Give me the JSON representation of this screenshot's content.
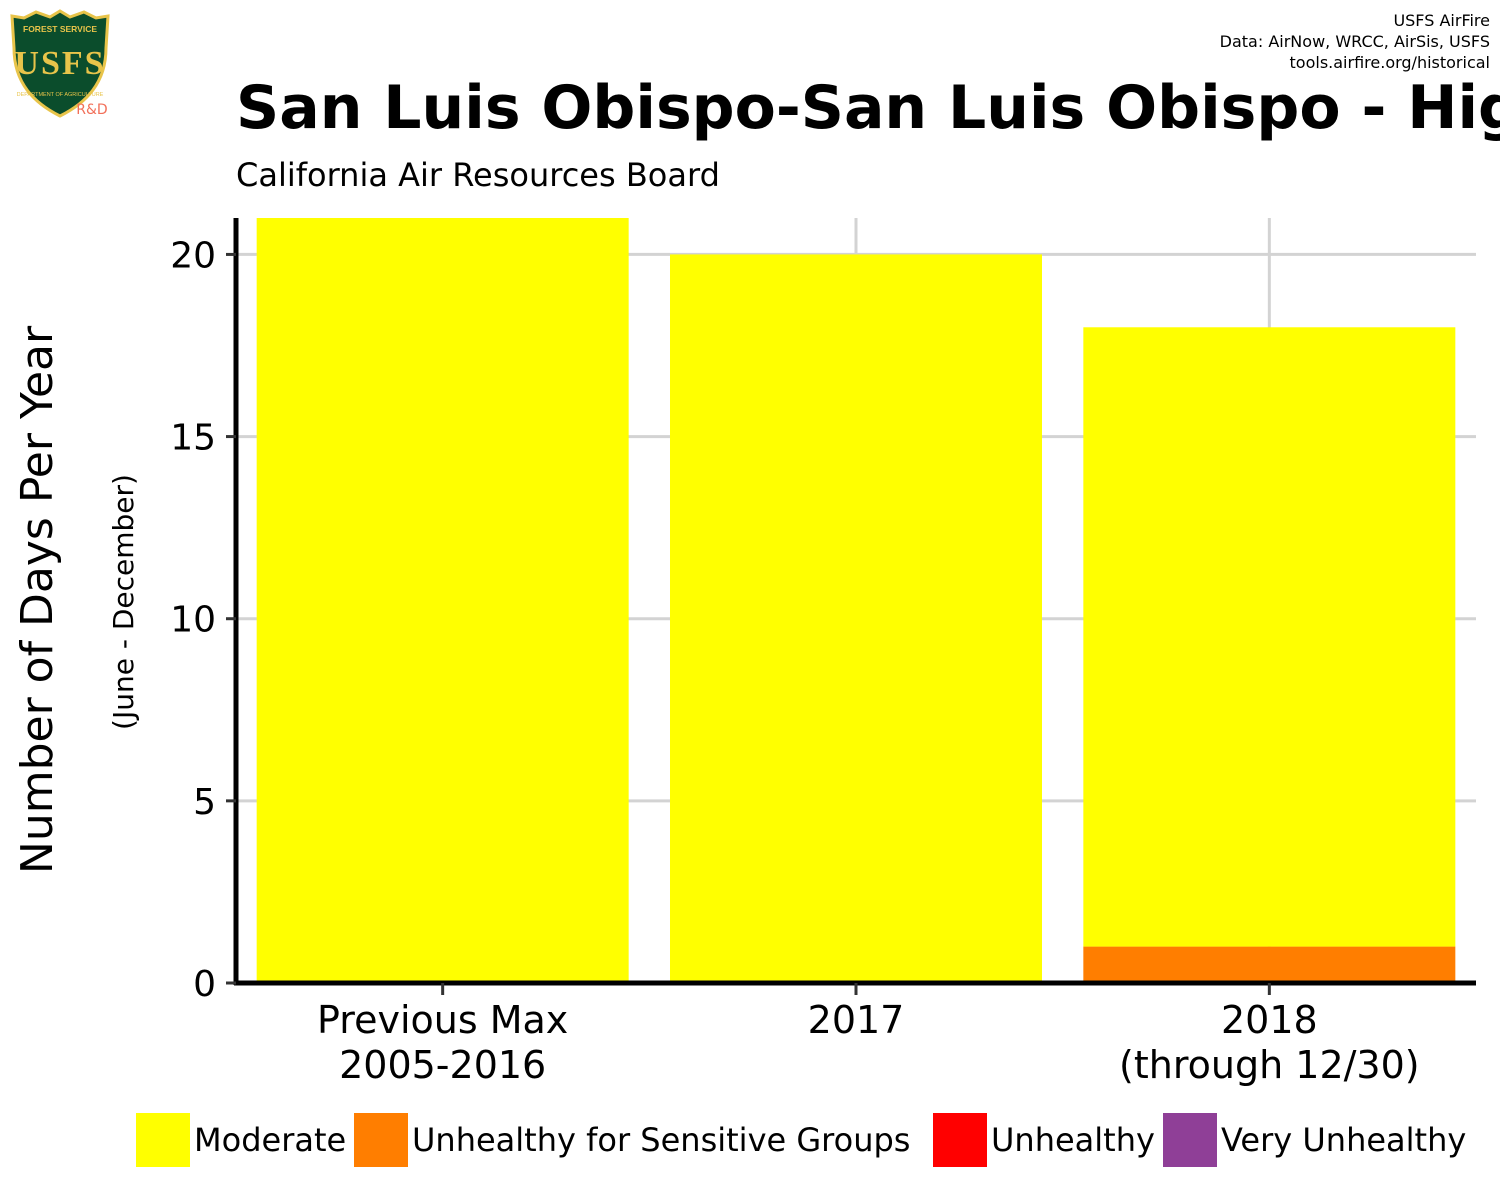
{
  "logo": {
    "top_text": "FOREST SERVICE",
    "main_text": "USFS",
    "bottom_text": "DEPARTMENT OF AGRICULTURE",
    "tag": "R&D",
    "shield_color": "#0b4d2c",
    "gold_color": "#e8c44a",
    "tag_color": "#f2705a"
  },
  "credits": {
    "line1": "USFS AirFire",
    "line2": "Data: AirNow, WRCC, AirSis, USFS",
    "line3": "tools.airfire.org/historical"
  },
  "header": {
    "title": "San Luis Obispo-San Luis Obispo - Higu",
    "subtitle": "California Air Resources Board"
  },
  "chart_data": {
    "type": "bar",
    "stacked": true,
    "categories": [
      [
        "Previous Max",
        "2005-2016"
      ],
      [
        "2017"
      ],
      [
        "2018",
        "(through 12/30)"
      ]
    ],
    "series": [
      {
        "name": "Moderate",
        "color": "#ffff00",
        "values": [
          21,
          20,
          17
        ]
      },
      {
        "name": "Unhealthy for Sensitive Groups",
        "color": "#ff7e00",
        "values": [
          0,
          0,
          1
        ]
      },
      {
        "name": "Unhealthy",
        "color": "#ff0000",
        "values": [
          0,
          0,
          0
        ]
      },
      {
        "name": "Very Unhealthy",
        "color": "#8f3f97",
        "values": [
          0,
          0,
          0
        ]
      }
    ],
    "ylabel": "Number of Days Per Year",
    "ylabel_sub": "(June - December)",
    "yticks": [
      0,
      5,
      10,
      15,
      20
    ],
    "ylim": [
      0,
      21
    ],
    "grid": true,
    "legend_position": "bottom",
    "grid_color": "#d3d3d3"
  }
}
